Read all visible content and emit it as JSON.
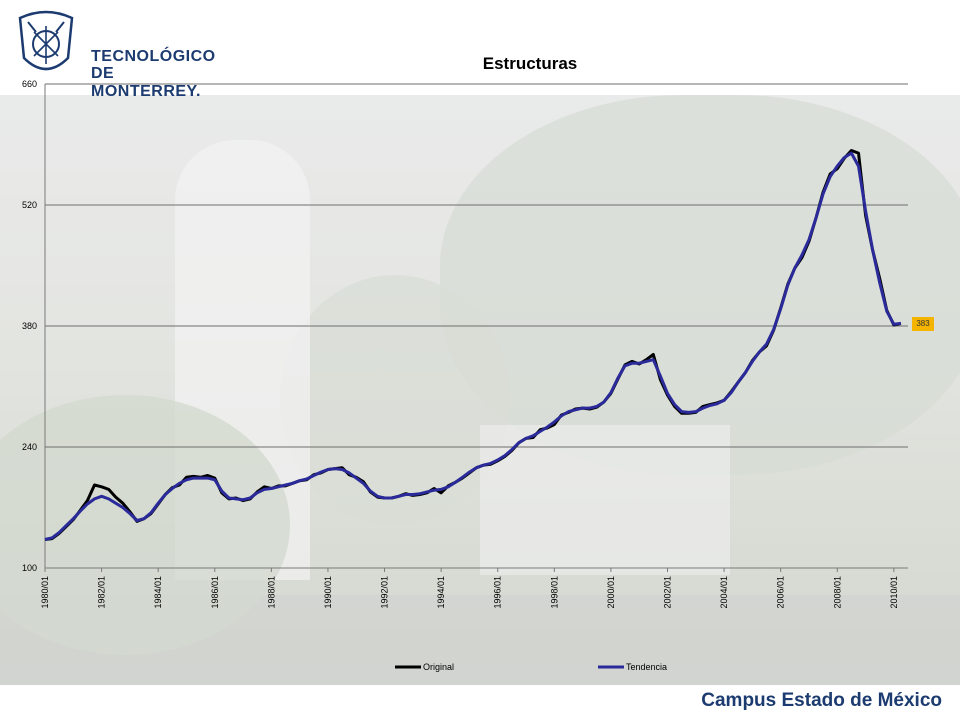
{
  "logo": {
    "line1": "TECNOLÓGICO",
    "line2": "DE MONTERREY."
  },
  "footer": {
    "campus": "Campus Estado de México"
  },
  "chart_data": {
    "type": "line",
    "title": "Estructuras",
    "xlabel": "",
    "ylabel": "",
    "ylim": [
      100,
      660
    ],
    "yticks": [
      100,
      240,
      380,
      520,
      660
    ],
    "xlim": [
      1980.0,
      2010.5
    ],
    "xticks": [
      {
        "x": 1980,
        "label": "1980/01"
      },
      {
        "x": 1982,
        "label": "1982/01"
      },
      {
        "x": 1984,
        "label": "1984/01"
      },
      {
        "x": 1986,
        "label": "1986/01"
      },
      {
        "x": 1988,
        "label": "1988/01"
      },
      {
        "x": 1990,
        "label": "1990/01"
      },
      {
        "x": 1992,
        "label": "1992/01"
      },
      {
        "x": 1994,
        "label": "1994/01"
      },
      {
        "x": 1996,
        "label": "1996/01"
      },
      {
        "x": 1998,
        "label": "1998/01"
      },
      {
        "x": 2000,
        "label": "2000/01"
      },
      {
        "x": 2002,
        "label": "2002/01"
      },
      {
        "x": 2004,
        "label": "2004/01"
      },
      {
        "x": 2006,
        "label": "2006/01"
      },
      {
        "x": 2008,
        "label": "2008/01"
      },
      {
        "x": 2010,
        "label": "2010/01"
      }
    ],
    "grid": "horizontal",
    "legend": "bottom",
    "last_value_label": "383",
    "series": [
      {
        "name": "Original",
        "color": "#000000",
        "x": [
          1980.0,
          1980.25,
          1980.5,
          1980.75,
          1981.0,
          1981.25,
          1981.5,
          1981.75,
          1982.0,
          1982.25,
          1982.5,
          1982.75,
          1983.0,
          1983.25,
          1983.5,
          1983.75,
          1984.0,
          1984.25,
          1984.5,
          1984.75,
          1985.0,
          1985.25,
          1985.5,
          1985.75,
          1986.0,
          1986.25,
          1986.5,
          1986.75,
          1987.0,
          1987.25,
          1987.5,
          1987.75,
          1988.0,
          1988.25,
          1988.5,
          1988.75,
          1989.0,
          1989.25,
          1989.5,
          1989.75,
          1990.0,
          1990.25,
          1990.5,
          1990.75,
          1991.0,
          1991.25,
          1991.5,
          1991.75,
          1992.0,
          1992.25,
          1992.5,
          1992.75,
          1993.0,
          1993.25,
          1993.5,
          1993.75,
          1994.0,
          1994.25,
          1994.5,
          1994.75,
          1995.0,
          1995.25,
          1995.5,
          1995.75,
          1996.0,
          1996.25,
          1996.5,
          1996.75,
          1997.0,
          1997.25,
          1997.5,
          1997.75,
          1998.0,
          1998.25,
          1998.5,
          1998.75,
          1999.0,
          1999.25,
          1999.5,
          1999.75,
          2000.0,
          2000.25,
          2000.5,
          2000.75,
          2001.0,
          2001.25,
          2001.5,
          2001.75,
          2002.0,
          2002.25,
          2002.5,
          2002.75,
          2003.0,
          2003.25,
          2003.5,
          2003.75,
          2004.0,
          2004.25,
          2004.5,
          2004.75,
          2005.0,
          2005.25,
          2005.5,
          2005.75,
          2006.0,
          2006.25,
          2006.5,
          2006.75,
          2007.0,
          2007.25,
          2007.5,
          2007.75,
          2008.0,
          2008.25,
          2008.5,
          2008.75,
          2009.0,
          2009.25,
          2009.5,
          2009.75,
          2010.0,
          2010.25
        ],
        "values": [
          133,
          134,
          140,
          148,
          156,
          167,
          178,
          196,
          194,
          191,
          182,
          175,
          165,
          154,
          157,
          163,
          174,
          185,
          193,
          196,
          205,
          206,
          205,
          207,
          204,
          187,
          180,
          181,
          178,
          180,
          188,
          194,
          192,
          195,
          195,
          198,
          201,
          202,
          208,
          210,
          214,
          215,
          216,
          208,
          205,
          200,
          188,
          182,
          181,
          181,
          183,
          186,
          184,
          185,
          187,
          192,
          187,
          195,
          199,
          204,
          210,
          216,
          219,
          220,
          224,
          229,
          236,
          245,
          250,
          251,
          260,
          262,
          266,
          277,
          280,
          284,
          285,
          284,
          286,
          292,
          302,
          319,
          335,
          339,
          336,
          341,
          347,
          318,
          300,
          287,
          279,
          279,
          280,
          287,
          289,
          291,
          294,
          304,
          315,
          326,
          340,
          350,
          357,
          375,
          401,
          428,
          447,
          459,
          478,
          505,
          535,
          556,
          562,
          574,
          583,
          580,
          508,
          468,
          435,
          398,
          381,
          383
        ]
      },
      {
        "name": "Tendencia",
        "color": "#2a2a9a",
        "x": [
          1980.0,
          1980.25,
          1980.5,
          1980.75,
          1981.0,
          1981.25,
          1981.5,
          1981.75,
          1982.0,
          1982.25,
          1982.5,
          1982.75,
          1983.0,
          1983.25,
          1983.5,
          1983.75,
          1984.0,
          1984.25,
          1984.5,
          1984.75,
          1985.0,
          1985.25,
          1985.5,
          1985.75,
          1986.0,
          1986.25,
          1986.5,
          1986.75,
          1987.0,
          1987.25,
          1987.5,
          1987.75,
          1988.0,
          1988.25,
          1988.5,
          1988.75,
          1989.0,
          1989.25,
          1989.5,
          1989.75,
          1990.0,
          1990.25,
          1990.5,
          1990.75,
          1991.0,
          1991.25,
          1991.5,
          1991.75,
          1992.0,
          1992.25,
          1992.5,
          1992.75,
          1993.0,
          1993.25,
          1993.5,
          1993.75,
          1994.0,
          1994.25,
          1994.5,
          1994.75,
          1995.0,
          1995.25,
          1995.5,
          1995.75,
          1996.0,
          1996.25,
          1996.5,
          1996.75,
          1997.0,
          1997.25,
          1997.5,
          1997.75,
          1998.0,
          1998.25,
          1998.5,
          1998.75,
          1999.0,
          1999.25,
          1999.5,
          1999.75,
          2000.0,
          2000.25,
          2000.5,
          2000.75,
          2001.0,
          2001.25,
          2001.5,
          2001.75,
          2002.0,
          2002.25,
          2002.5,
          2002.75,
          2003.0,
          2003.25,
          2003.5,
          2003.75,
          2004.0,
          2004.25,
          2004.5,
          2004.75,
          2005.0,
          2005.25,
          2005.5,
          2005.75,
          2006.0,
          2006.25,
          2006.5,
          2006.75,
          2007.0,
          2007.25,
          2007.5,
          2007.75,
          2008.0,
          2008.25,
          2008.5,
          2008.75,
          2009.0,
          2009.25,
          2009.5,
          2009.75,
          2010.0,
          2010.25
        ],
        "values": [
          133,
          135,
          141,
          149,
          157,
          166,
          174,
          180,
          183,
          180,
          175,
          170,
          163,
          155,
          157,
          164,
          175,
          185,
          192,
          198,
          202,
          204,
          204,
          204,
          202,
          189,
          181,
          180,
          179,
          181,
          187,
          191,
          192,
          194,
          196,
          198,
          201,
          203,
          207,
          211,
          214,
          215,
          214,
          210,
          204,
          198,
          189,
          183,
          181,
          181,
          183,
          185,
          185,
          186,
          188,
          190,
          191,
          194,
          199,
          205,
          211,
          216,
          219,
          221,
          225,
          230,
          237,
          245,
          250,
          253,
          258,
          263,
          269,
          276,
          281,
          283,
          285,
          285,
          287,
          292,
          303,
          320,
          334,
          337,
          337,
          339,
          341,
          322,
          302,
          289,
          281,
          280,
          281,
          285,
          288,
          290,
          294,
          303,
          315,
          326,
          339,
          350,
          359,
          376,
          400,
          427,
          447,
          462,
          480,
          505,
          533,
          553,
          565,
          575,
          580,
          565,
          513,
          468,
          430,
          397,
          382,
          383
        ]
      }
    ]
  }
}
